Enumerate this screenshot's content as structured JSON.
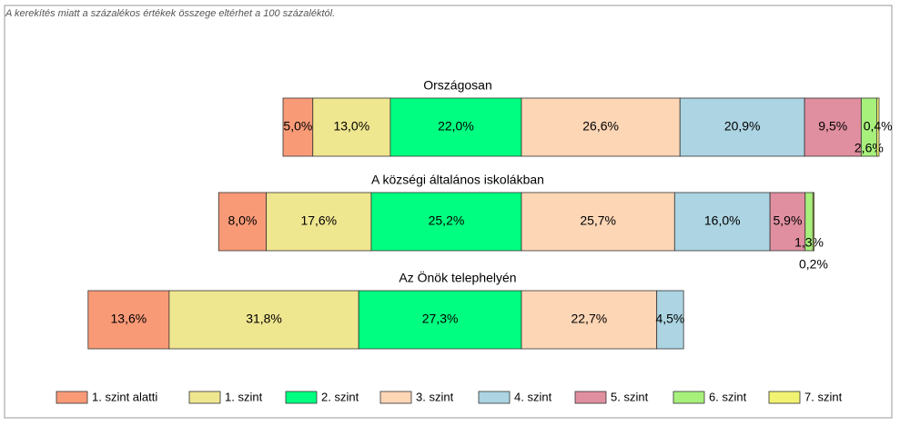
{
  "chart_data": {
    "type": "bar",
    "orientation": "horizontal",
    "stacked": true,
    "note": "A kerekítés miatt a százalékos értékek összege eltérhet a 100 százaléktól.",
    "categories": [
      "Országosan",
      "A községi általános iskolákban",
      "Az Önök telephelyén"
    ],
    "series": [
      {
        "name": "1. szint alatti",
        "color": "#f99a77",
        "values": [
          5.0,
          8.0,
          13.6
        ],
        "value_labels": [
          "5,0%",
          "8,0%",
          "13,6%"
        ]
      },
      {
        "name": "1. szint",
        "color": "#efe690",
        "values": [
          13.0,
          17.6,
          31.8
        ],
        "value_labels": [
          "13,0%",
          "17,6%",
          "31,8%"
        ]
      },
      {
        "name": "2. szint",
        "color": "#00ff80",
        "values": [
          22.0,
          25.2,
          27.3
        ],
        "value_labels": [
          "22,0%",
          "25,2%",
          "27,3%"
        ]
      },
      {
        "name": "3. szint",
        "color": "#fdd6b6",
        "values": [
          26.6,
          25.7,
          22.7
        ],
        "value_labels": [
          "26,6%",
          "25,7%",
          "22,7%"
        ]
      },
      {
        "name": "4. szint",
        "color": "#acd4e2",
        "values": [
          20.9,
          16.0,
          4.5
        ],
        "value_labels": [
          "20,9%",
          "16,0%",
          "4,5%"
        ]
      },
      {
        "name": "5. szint",
        "color": "#e08fa0",
        "values": [
          9.5,
          5.9,
          null
        ],
        "value_labels": [
          "9,5%",
          "5,9%",
          null
        ]
      },
      {
        "name": "6. szint",
        "color": "#a8f07c",
        "values": [
          2.6,
          1.3,
          null
        ],
        "value_labels": [
          "2,6%",
          "1,3%",
          null
        ]
      },
      {
        "name": "7. szint",
        "color": "#f2f272",
        "values": [
          0.4,
          0.2,
          null
        ],
        "value_labels": [
          "0,4%",
          "0,2%",
          null
        ]
      }
    ]
  }
}
